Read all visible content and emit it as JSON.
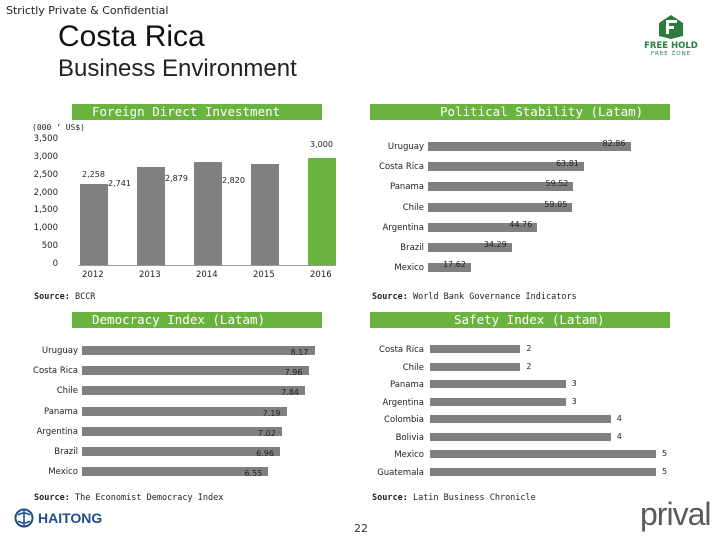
{
  "header": {
    "confidential": "Strictly Private & Confidential",
    "title": "Costa Rica",
    "subtitle": "Business Environment",
    "logo_top": "FREE HOLD",
    "logo_bottom": "FREE ZONE"
  },
  "bands": {
    "fdi": "Foreign Direct Investment",
    "political": "Political Stability (Latam)",
    "democracy": "Democracy Index (Latam)",
    "safety": "Safety Index (Latam)"
  },
  "fdi": {
    "unit": "(000 ’ US$)",
    "source_label": "Source:",
    "source_text": "BCCR",
    "y_ticks": [
      "3,500",
      "3,000",
      "2,500",
      "2,000",
      "1,500",
      "1,000",
      "500",
      "0"
    ],
    "chart_data": {
      "type": "bar",
      "categories": [
        "2012",
        "2013",
        "2014",
        "2015",
        "2016"
      ],
      "values": [
        2258,
        2741,
        2879,
        2820,
        3000
      ],
      "labels": [
        "2,258",
        "2,741",
        "2,879",
        "2,820",
        "3,000"
      ],
      "ylim": [
        0,
        3500
      ],
      "colors": [
        "#808080",
        "#808080",
        "#808080",
        "#808080",
        "#6ab33e"
      ]
    }
  },
  "political": {
    "source_label": "Source:",
    "source_text": "World Bank Governance Indicators",
    "chart_data": {
      "type": "bar",
      "categories": [
        "Uruguay",
        "Costa Rica",
        "Panama",
        "Chile",
        "Argentina",
        "Brazil",
        "Mexico"
      ],
      "values": [
        82.86,
        63.81,
        59.52,
        59.05,
        44.76,
        34.29,
        17.62
      ],
      "labels": [
        "82.86",
        "63.81",
        "59.52",
        "59.05",
        "44.76",
        "34.29",
        "17.62"
      ],
      "xlim": [
        0,
        90
      ]
    }
  },
  "democracy": {
    "source_label": "Source:",
    "source_text": "The Economist Democracy Index",
    "chart_data": {
      "type": "bar",
      "categories": [
        "Uruguay",
        "Costa Rica",
        "Chile",
        "Panama",
        "Argentina",
        "Brazil",
        "Mexico"
      ],
      "values": [
        8.17,
        7.96,
        7.84,
        7.19,
        7.02,
        6.96,
        6.55
      ],
      "labels": [
        "8.17",
        "7.96",
        "7.84",
        "7.19",
        "7.02",
        "6.96",
        "6.55"
      ],
      "xlim": [
        0,
        8.5
      ]
    }
  },
  "safety": {
    "source_label": "Source:",
    "source_text": "Latin Business Chronicle",
    "chart_data": {
      "type": "bar",
      "categories": [
        "Costa Rica",
        "Chile",
        "Panama",
        "Argentina",
        "Colombia",
        "Bolivia",
        "Mexico",
        "Guatemala"
      ],
      "values": [
        2,
        2,
        3,
        3,
        4,
        4,
        5,
        5
      ],
      "labels": [
        "2",
        "2",
        "3",
        "3",
        "4",
        "4",
        "5",
        "5"
      ],
      "xlim": [
        0,
        5
      ]
    }
  },
  "footer": {
    "haitong": "HAITONG",
    "prival": "prival",
    "page": "22"
  }
}
